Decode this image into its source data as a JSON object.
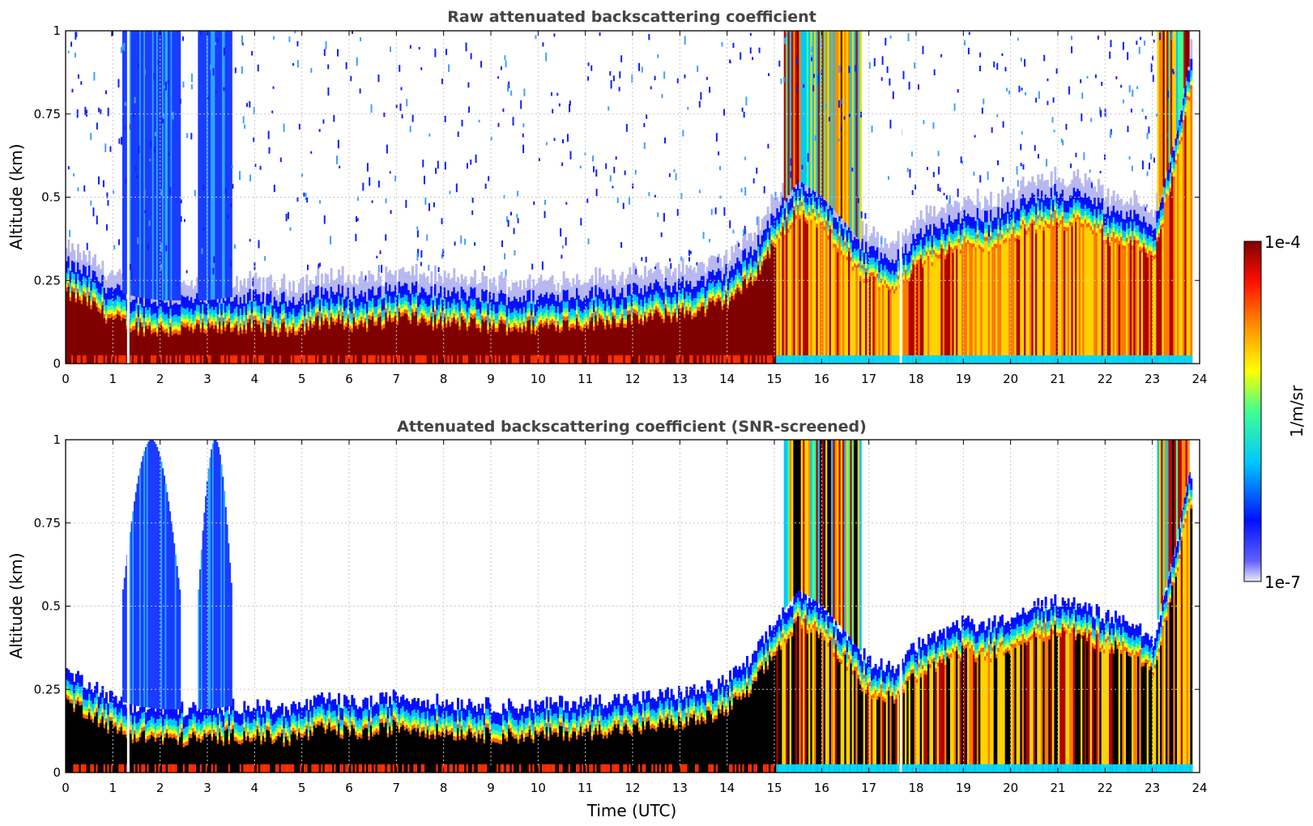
{
  "chart_data": [
    {
      "type": "heatmap",
      "title": "Raw attenuated backscattering coefficient",
      "xlabel": "",
      "ylabel": "Altitude (km)",
      "xlim": [
        0,
        24
      ],
      "ylim": [
        0,
        1
      ],
      "xticks": [
        0,
        1,
        2,
        3,
        4,
        5,
        6,
        7,
        8,
        9,
        10,
        11,
        12,
        13,
        14,
        15,
        16,
        17,
        18,
        19,
        20,
        21,
        22,
        23,
        24
      ],
      "yticks": [
        0,
        0.25,
        0.5,
        0.75,
        1
      ],
      "ytick_labels": [
        "0",
        "0.25",
        "0.5",
        "0.75",
        "1"
      ],
      "grid": true,
      "profile": {
        "time_utc": [
          0,
          0.5,
          1,
          1.5,
          2,
          2.5,
          3,
          3.5,
          4,
          4.5,
          5,
          5.5,
          6,
          6.5,
          7,
          7.5,
          8,
          8.5,
          9,
          9.5,
          10,
          10.5,
          11,
          11.5,
          12,
          12.5,
          13,
          13.5,
          14,
          14.5,
          15,
          15.5,
          16,
          16.5,
          17,
          17.5,
          18,
          18.5,
          19,
          19.5,
          20,
          20.5,
          21,
          21.5,
          22,
          22.5,
          23,
          23.5,
          23.75
        ],
        "layer_top_km": [
          0.3,
          0.27,
          0.22,
          0.2,
          0.19,
          0.19,
          0.19,
          0.2,
          0.2,
          0.19,
          0.2,
          0.22,
          0.21,
          0.21,
          0.23,
          0.22,
          0.21,
          0.21,
          0.2,
          0.2,
          0.2,
          0.21,
          0.21,
          0.22,
          0.22,
          0.23,
          0.24,
          0.25,
          0.28,
          0.34,
          0.45,
          0.55,
          0.5,
          0.42,
          0.33,
          0.32,
          0.38,
          0.42,
          0.45,
          0.44,
          0.47,
          0.5,
          0.52,
          0.5,
          0.47,
          0.45,
          0.4,
          0.7,
          0.9
        ],
        "note_fog_columns_utc": [
          1.3,
          2.0,
          3.1
        ]
      }
    },
    {
      "type": "heatmap",
      "title": "Attenuated backscattering coefficient (SNR-screened)",
      "xlabel": "Time (UTC)",
      "ylabel": "Altitude (km)",
      "xlim": [
        0,
        24
      ],
      "ylim": [
        0,
        1
      ],
      "xticks": [
        0,
        1,
        2,
        3,
        4,
        5,
        6,
        7,
        8,
        9,
        10,
        11,
        12,
        13,
        14,
        15,
        16,
        17,
        18,
        19,
        20,
        21,
        22,
        23,
        24
      ],
      "yticks": [
        0,
        0.25,
        0.5,
        0.75,
        1
      ],
      "ytick_labels": [
        "0",
        "0.25",
        "0.5",
        "0.75",
        "1"
      ],
      "grid": true
    }
  ],
  "colorbar": {
    "label": "1/m/sr",
    "max_label": "1e-4",
    "min_label": "1e-7",
    "scale": "log",
    "colors": [
      "#e8e8f8",
      "#0000ff",
      "#00e0ff",
      "#00ff80",
      "#ffff00",
      "#ff8000",
      "#ff0000",
      "#800000"
    ]
  }
}
